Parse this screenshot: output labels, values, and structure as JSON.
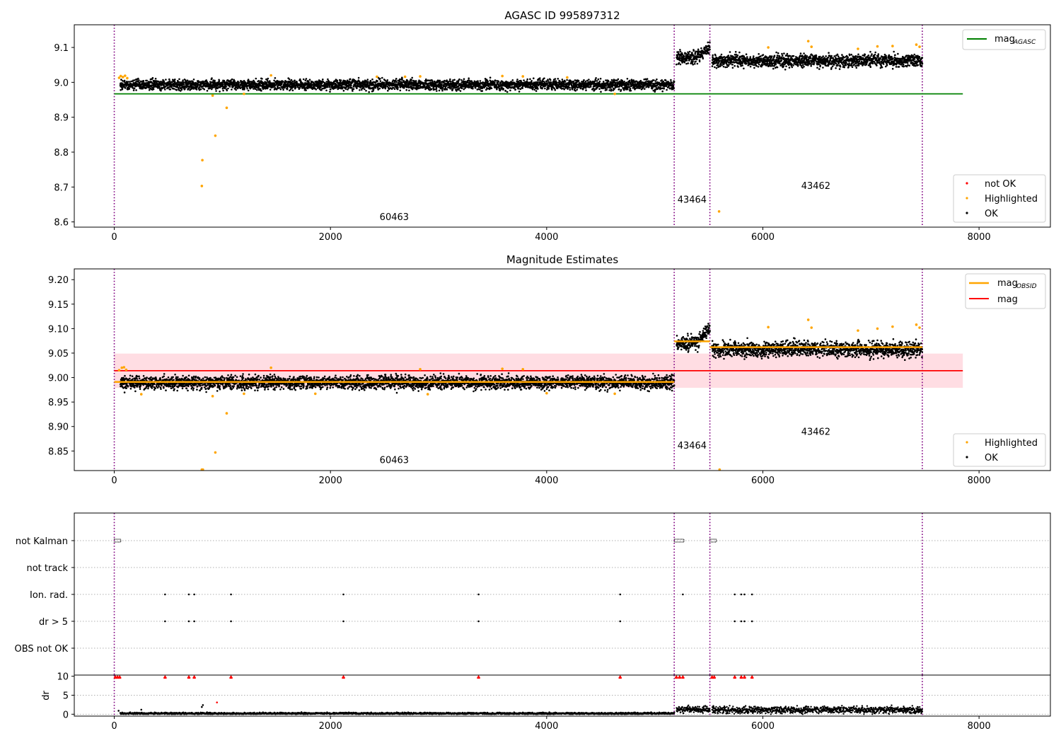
{
  "chart_data": [
    {
      "type": "scatter",
      "title": "AGASC ID 995897312",
      "xlim": [
        -370,
        8660
      ],
      "ylim": [
        8.585,
        9.165
      ],
      "xticks": [
        0,
        2000,
        4000,
        6000,
        8000
      ],
      "yticks": [
        8.6,
        8.7,
        8.8,
        8.9,
        9.0,
        9.1
      ],
      "grid": false,
      "obsid_boundaries": [
        0,
        5180,
        5510,
        7475
      ],
      "obsid_labels": [
        {
          "text": "60463",
          "x": 2590,
          "y": 8.605
        },
        {
          "text": "43464",
          "x": 5345,
          "y": 8.655
        },
        {
          "text": "43462",
          "x": 6490,
          "y": 8.695
        }
      ],
      "reference_lines": [
        {
          "name": "mag",
          "subscript": "AGASC",
          "color": "#008000",
          "y": 8.967,
          "x": [
            0,
            7850
          ]
        }
      ],
      "segments": [
        {
          "x": [
            55,
            5180
          ],
          "mean": 8.993,
          "spread": 0.013
        },
        {
          "x": [
            5200,
            5510
          ],
          "mean": 9.072,
          "spread": 0.016,
          "trend": 0.028
        },
        {
          "x": [
            5530,
            7475
          ],
          "mean": 9.062,
          "spread": 0.016
        }
      ],
      "highlighted_points": [
        [
          45,
          9.013
        ],
        [
          60,
          9.018
        ],
        [
          80,
          9.015
        ],
        [
          100,
          9.019
        ],
        [
          120,
          9.012
        ],
        [
          810,
          8.703
        ],
        [
          815,
          8.777
        ],
        [
          935,
          8.847
        ],
        [
          1040,
          8.927
        ],
        [
          910,
          8.962
        ],
        [
          1200,
          8.967
        ],
        [
          1450,
          9.02
        ],
        [
          2430,
          9.016
        ],
        [
          2690,
          9.016
        ],
        [
          2830,
          9.017
        ],
        [
          3590,
          9.018
        ],
        [
          3780,
          9.017
        ],
        [
          4190,
          9.014
        ],
        [
          4630,
          8.967
        ],
        [
          5595,
          8.63
        ],
        [
          6050,
          9.1
        ],
        [
          6420,
          9.118
        ],
        [
          6450,
          9.102
        ],
        [
          6880,
          9.096
        ],
        [
          7060,
          9.103
        ],
        [
          7200,
          9.104
        ],
        [
          7420,
          9.108
        ],
        [
          7450,
          9.102
        ]
      ],
      "not_ok_points": [],
      "legend_lines": [
        {
          "label": "mag",
          "subscript": "AGASC"
        }
      ],
      "legend_markers": [
        {
          "label": "not OK",
          "color": "#ff0000"
        },
        {
          "label": "Highlighted",
          "color": "#ffa500"
        },
        {
          "label": "OK",
          "color": "#000000"
        }
      ]
    },
    {
      "type": "scatter",
      "title": "Magnitude Estimates",
      "xlim": [
        -370,
        8660
      ],
      "ylim": [
        8.81,
        9.222
      ],
      "xticks": [
        0,
        2000,
        4000,
        6000,
        8000
      ],
      "yticks": [
        8.85,
        8.9,
        8.95,
        9.0,
        9.05,
        9.1,
        9.15,
        9.2
      ],
      "grid": false,
      "obsid_boundaries": [
        0,
        5180,
        5510,
        7475
      ],
      "obsid_labels": [
        {
          "text": "60463",
          "x": 2590,
          "y": 8.825
        },
        {
          "text": "43464",
          "x": 5345,
          "y": 8.855
        },
        {
          "text": "43462",
          "x": 6490,
          "y": 8.883
        }
      ],
      "mag_line": {
        "name": "mag",
        "color": "#ff0000",
        "y": 9.014,
        "band": [
          8.979,
          9.049
        ],
        "x": [
          0,
          7850
        ]
      },
      "obsid_mag_segments": [
        {
          "x": [
            0,
            5180
          ],
          "y": 8.991
        },
        {
          "x": [
            5180,
            5510
          ],
          "y": 9.074
        },
        {
          "x": [
            5510,
            7475
          ],
          "y": 9.062
        }
      ],
      "segments": [
        {
          "x": [
            55,
            5180
          ],
          "mean": 8.99,
          "spread": 0.012
        },
        {
          "x": [
            5200,
            5510
          ],
          "mean": 9.07,
          "spread": 0.015,
          "trend": 0.03
        },
        {
          "x": [
            5530,
            7475
          ],
          "mean": 9.058,
          "spread": 0.014
        }
      ],
      "highlighted_points": [
        [
          45,
          9.015
        ],
        [
          70,
          9.02
        ],
        [
          90,
          9.021
        ],
        [
          110,
          9.016
        ],
        [
          250,
          8.966
        ],
        [
          810,
          8.812
        ],
        [
          820,
          8.812
        ],
        [
          935,
          8.847
        ],
        [
          1040,
          8.927
        ],
        [
          910,
          8.962
        ],
        [
          1200,
          8.967
        ],
        [
          1450,
          9.02
        ],
        [
          1860,
          8.967
        ],
        [
          2830,
          9.017
        ],
        [
          2900,
          8.966
        ],
        [
          3590,
          9.018
        ],
        [
          3780,
          9.017
        ],
        [
          4000,
          8.968
        ],
        [
          4630,
          8.967
        ],
        [
          5600,
          8.812
        ],
        [
          6050,
          9.103
        ],
        [
          6420,
          9.118
        ],
        [
          6450,
          9.102
        ],
        [
          6880,
          9.096
        ],
        [
          7060,
          9.1
        ],
        [
          7200,
          9.104
        ],
        [
          7420,
          9.108
        ],
        [
          7450,
          9.102
        ]
      ],
      "legend_lines": [
        {
          "label": "mag",
          "subscript": "OBSID",
          "color": "#ffa500"
        },
        {
          "label": "mag",
          "subscript": "",
          "color": "#ff0000"
        }
      ],
      "legend_markers": [
        {
          "label": "Highlighted",
          "color": "#ffa500"
        },
        {
          "label": "OK",
          "color": "#000000"
        }
      ]
    },
    {
      "type": "scatter",
      "title": "",
      "xlim": [
        -370,
        8660
      ],
      "flag_rows": [
        "not Kalman",
        "not track",
        "Ion. rad.",
        "dr > 5",
        "OBS not OK"
      ],
      "flag_events": {
        "not Kalman": {
          "ranges": [
            [
              0,
              60
            ],
            [
              5180,
              5270
            ],
            [
              5510,
              5570
            ]
          ],
          "points": []
        },
        "not track": {
          "ranges": [],
          "points": []
        },
        "Ion. rad.": {
          "ranges": [],
          "points": [
            470,
            690,
            740,
            1080,
            2120,
            3370,
            4680,
            5260,
            5740,
            5800,
            5830,
            5900
          ]
        },
        "dr > 5": {
          "ranges": [],
          "points": [
            470,
            690,
            740,
            1080,
            2120,
            3370,
            4680,
            5740,
            5800,
            5830,
            5900
          ]
        },
        "OBS not OK": {
          "ranges": [],
          "points": []
        }
      },
      "dr_threshold_markers": [
        10,
        30,
        50,
        470,
        690,
        740,
        1080,
        2120,
        3370,
        4680,
        5200,
        5230,
        5260,
        5530,
        5550,
        5740,
        5800,
        5830,
        5900
      ]
    },
    {
      "type": "scatter",
      "title": "",
      "xlim": [
        -370,
        8660
      ],
      "ylim": [
        -0.5,
        10.3
      ],
      "yticks": [
        0,
        5,
        10
      ],
      "ylabel": "dr",
      "xticks": [
        0,
        2000,
        4000,
        6000,
        8000
      ],
      "segments": [
        {
          "x": [
            55,
            5180
          ],
          "mean": 0.2,
          "spread": 0.12
        },
        {
          "x": [
            5200,
            5510
          ],
          "mean": 1.2,
          "spread": 0.45
        },
        {
          "x": [
            5530,
            7475
          ],
          "mean": 1.1,
          "spread": 0.45
        }
      ],
      "outlier_points": [
        [
          40,
          0.9
        ],
        [
          250,
          1.2
        ],
        [
          810,
          1.9
        ],
        [
          820,
          2.4
        ],
        [
          950,
          3.1
        ]
      ],
      "threshold_markers_y": 9.9
    }
  ],
  "colors": {
    "ok": "#000000",
    "highlighted": "#ffa500",
    "not_ok": "#ff0000",
    "agasc_line": "#008000",
    "mag_line": "#ff0000",
    "mag_band": "#ffdde3",
    "obsid_line": "#ffa500",
    "boundary": "#800080",
    "flag_grid": "#b0b0b0"
  }
}
